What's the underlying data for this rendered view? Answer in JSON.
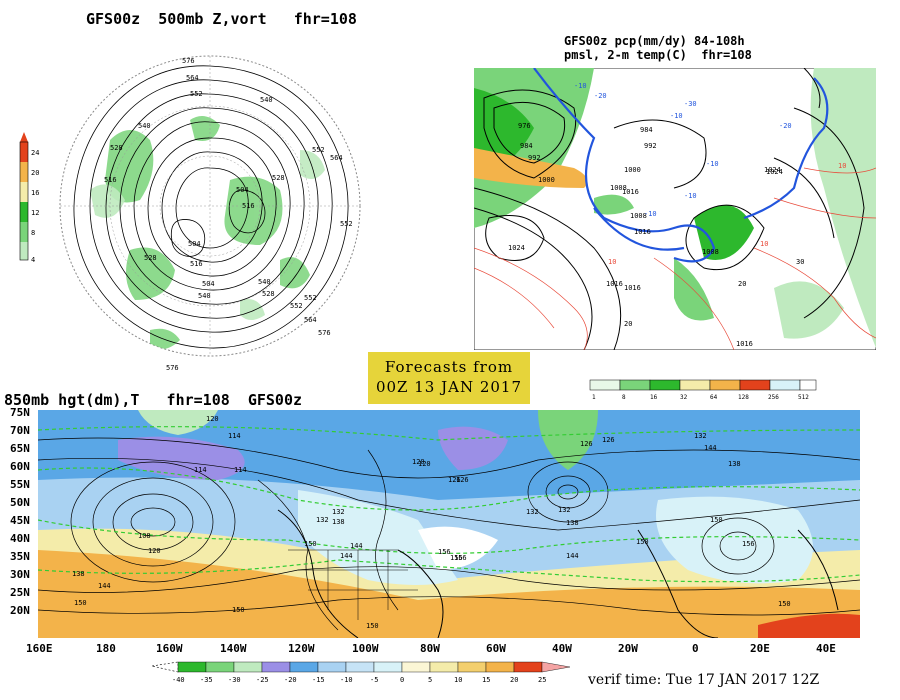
{
  "panels": {
    "vort_title": "GFS00z  500mb Z,vort   fhr=108",
    "vort_scale": [
      "24",
      "20",
      "16",
      "12",
      "8",
      "4"
    ],
    "vort_contours": [
      "576",
      "564",
      "552",
      "540",
      "528",
      "516",
      "504",
      "564",
      "552",
      "540",
      "528",
      "516",
      "504",
      "552",
      "552",
      "540",
      "528",
      "516",
      "504",
      "528",
      "540",
      "552",
      "564",
      "576",
      "576"
    ],
    "pcp_title_1": "GFS00z pcp(mm/dy) 84-108h",
    "pcp_title_2": "pmsl, 2-m temp(C)  fhr=108",
    "pcp_labels": [
      "976",
      "984",
      "992",
      "1000",
      "1008",
      "1016",
      "1024",
      "984",
      "992",
      "1000",
      "1008",
      "1016",
      "1024",
      "1016",
      "1016",
      "1016",
      "1024",
      "1008"
    ],
    "pcp_temp_labels": [
      "-10",
      "-20",
      "-30",
      "-10",
      "-20",
      "-10",
      "-10",
      "-10",
      "10",
      "10",
      "10",
      "20",
      "20",
      "30"
    ],
    "pcp_scale": [
      "1",
      "8",
      "16",
      "32",
      "64",
      "128",
      "256",
      "512"
    ],
    "forecast_box": [
      "Forecasts from",
      "00Z 13 JAN 2017"
    ],
    "h850_title": "850mb hgt(dm),T   fhr=108  GFS00z",
    "lat_labels": [
      "75N",
      "70N",
      "65N",
      "60N",
      "55N",
      "50N",
      "45N",
      "40N",
      "35N",
      "30N",
      "25N",
      "20N"
    ],
    "lon_labels": [
      "160E",
      "180",
      "160W",
      "140W",
      "120W",
      "100W",
      "80W",
      "60W",
      "40W",
      "20W",
      "0",
      "20E",
      "40E"
    ],
    "h850_contours": [
      "120",
      "114",
      "114",
      "120",
      "126",
      "132",
      "138",
      "144",
      "150",
      "156",
      "126",
      "132",
      "138",
      "144",
      "150",
      "156",
      "120",
      "126",
      "126",
      "132",
      "138",
      "144",
      "150",
      "156",
      "150",
      "108",
      "120",
      "132",
      "138",
      "144",
      "150",
      "114",
      "144",
      "150",
      "150",
      "156",
      "132"
    ],
    "temp_scale": [
      "-40",
      "-35",
      "-30",
      "-25",
      "-20",
      "-15",
      "-10",
      "-5",
      "0",
      "5",
      "10",
      "15",
      "20",
      "25"
    ],
    "verif_time": "verif time: Tue 17 JAN 2017 12Z"
  },
  "colors": {
    "green_dark": "#2db82d",
    "green_mid": "#7ad47a",
    "green_light": "#bfeabf",
    "purple": "#9b8fe6",
    "blue_mid": "#5aa7e6",
    "blue_light": "#a9d2f2",
    "cyan_light": "#d8f2f8",
    "yellow": "#f4ecaa",
    "orange": "#f3b34a",
    "red": "#e3421c",
    "forecast_box": "#e6d43a"
  }
}
